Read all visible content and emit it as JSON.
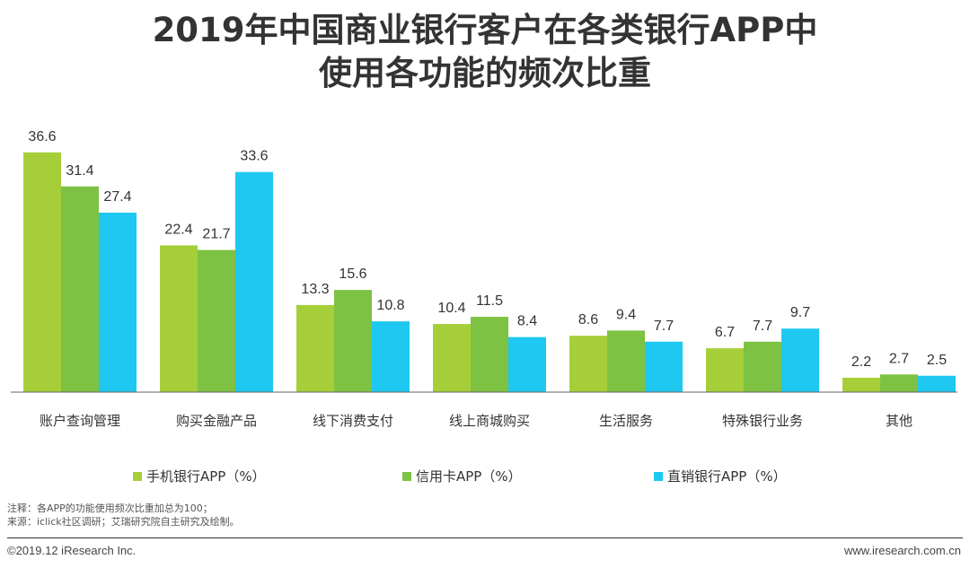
{
  "chart_data": {
    "type": "bar",
    "title_line1": "2019年中国商业银行客户在各类银行APP中",
    "title_line2": "使用各功能的频次比重",
    "categories": [
      "账户查询管理",
      "购买金融产品",
      "线下消费支付",
      "线上商城购买",
      "生活服务",
      "特殊银行业务",
      "其他"
    ],
    "series": [
      {
        "name": "手机银行APP（%）",
        "color": "#a6ce39",
        "values": [
          36.6,
          22.4,
          13.3,
          10.4,
          8.6,
          6.7,
          2.2
        ]
      },
      {
        "name": "信用卡APP（%）",
        "color": "#7dc242",
        "values": [
          31.4,
          21.7,
          15.6,
          11.5,
          9.4,
          7.7,
          2.7
        ]
      },
      {
        "name": "直销银行APP（%）",
        "color": "#1ec8f0",
        "values": [
          27.4,
          33.6,
          10.8,
          8.4,
          7.7,
          9.7,
          2.5
        ]
      }
    ],
    "xlabel": "",
    "ylabel": "",
    "ylim": [
      0,
      40
    ],
    "legend_position": "bottom",
    "grid": false
  },
  "notes": {
    "line1": "注释：各APP的功能使用频次比重加总为100；",
    "line2": "来源：iclick社区调研；艾瑞研究院自主研究及绘制。"
  },
  "footer": {
    "copyright": "©2019.12 iResearch Inc.",
    "website": "www.iresearch.com.cn"
  }
}
